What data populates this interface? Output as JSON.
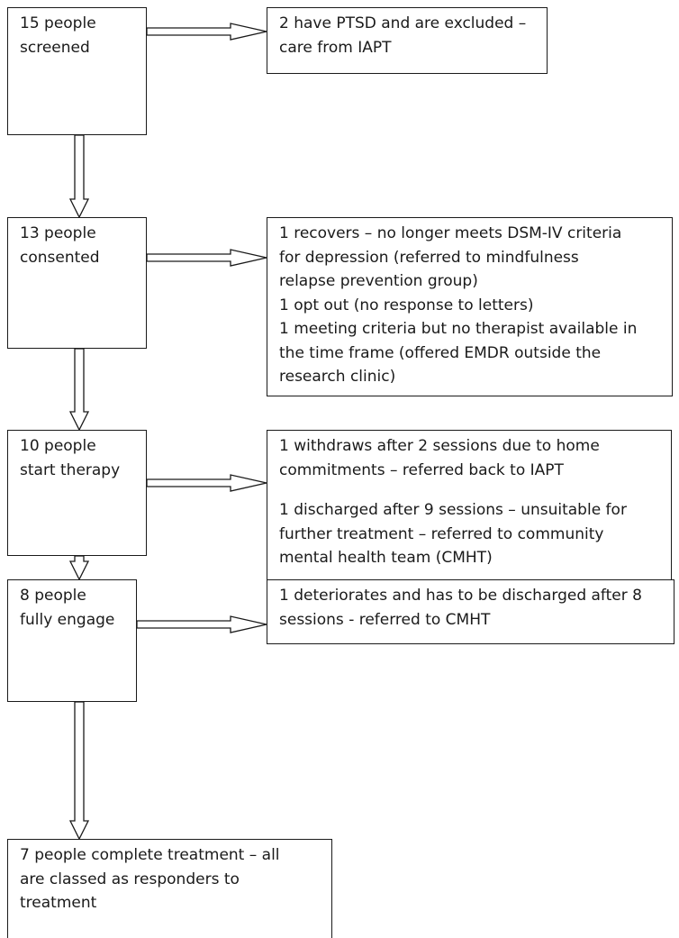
{
  "flow": {
    "main_boxes": [
      {
        "id": "screened",
        "lines": [
          "15 people",
          "screened"
        ]
      },
      {
        "id": "consented",
        "lines": [
          "13 people",
          "consented"
        ]
      },
      {
        "id": "start-therapy",
        "lines": [
          "10 people",
          "start therapy"
        ]
      },
      {
        "id": "fully-engage",
        "lines": [
          "8 people",
          "fully engage"
        ]
      },
      {
        "id": "complete",
        "lines": [
          "7 people complete treatment – all",
          "are classed as responders to",
          "treatment"
        ]
      }
    ],
    "side_boxes": [
      {
        "id": "excluded",
        "paragraphs": [
          [
            "2 have PTSD and are excluded –",
            "care from IAPT"
          ]
        ]
      },
      {
        "id": "consent-dropouts",
        "paragraphs": [
          [
            "1 recovers – no longer meets DSM-IV criteria",
            "for depression (referred to mindfulness",
            "relapse prevention group)",
            "1 opt out (no response to letters)",
            "1 meeting criteria but no therapist available in",
            "the time frame (offered EMDR outside the",
            "research clinic)"
          ]
        ]
      },
      {
        "id": "therapy-dropouts",
        "paragraphs": [
          [
            "1 withdraws after 2 sessions due to home",
            "commitments – referred back to IAPT"
          ],
          [
            "1 discharged after 9 sessions – unsuitable for",
            "further treatment – referred to community",
            "mental health team (CMHT)"
          ]
        ]
      },
      {
        "id": "engage-dropouts",
        "paragraphs": [
          [
            "1 deteriorates and has to be discharged after 8",
            "sessions - referred to CMHT"
          ]
        ]
      }
    ]
  }
}
